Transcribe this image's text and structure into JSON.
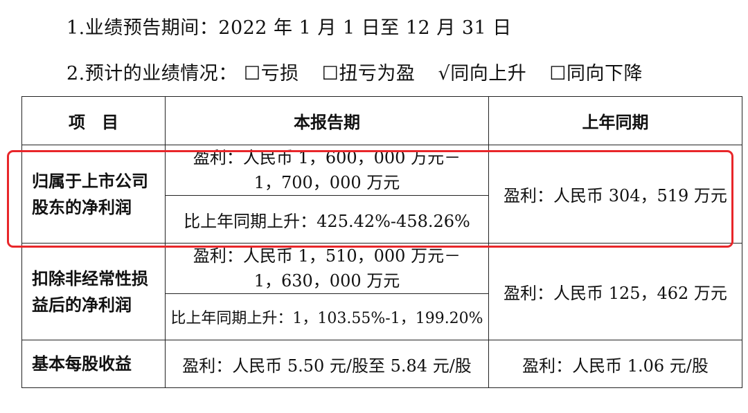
{
  "line1": {
    "text": "1.业绩预告期间：2022 年 1 月 1 日至 12 月 31 日"
  },
  "line2": {
    "prefix": "2.预计的业绩情况：",
    "options": [
      {
        "mark": "☐",
        "label": "亏损"
      },
      {
        "mark": "☐",
        "label": "扭亏为盈"
      },
      {
        "mark": "√",
        "label": "同向上升"
      },
      {
        "mark": "☐",
        "label": "同向下降"
      }
    ]
  },
  "table": {
    "headers": [
      "项　目",
      "本报告期",
      "上年同期"
    ],
    "rows": [
      {
        "label_l1": "归属于上市公司",
        "label_l2": "股东的净利润",
        "current_l1": "盈利：人民币 1，600，000 万元－",
        "current_l2": "1，700，000 万元",
        "change": "比上年同期上升：425.42%-458.26%",
        "prior": "盈利：人民币 304，519 万元"
      },
      {
        "label_l1": "扣除非经常性损",
        "label_l2": "益后的净利润",
        "current_l1": "盈利：人民币 1，510，000 万元－",
        "current_l2": "1，630，000 万元",
        "change": "比上年同期上升：1，103.55%-1，199.20%",
        "prior": "盈利：人民币 125，462 万元"
      },
      {
        "label": "基本每股收益",
        "current": "盈利：人民币 5.50 元/股至 5.84 元/股",
        "prior": "盈利：人民币 1.06 元/股"
      }
    ]
  },
  "colors": {
    "highlight": "#e8262a",
    "border": "#222222"
  }
}
